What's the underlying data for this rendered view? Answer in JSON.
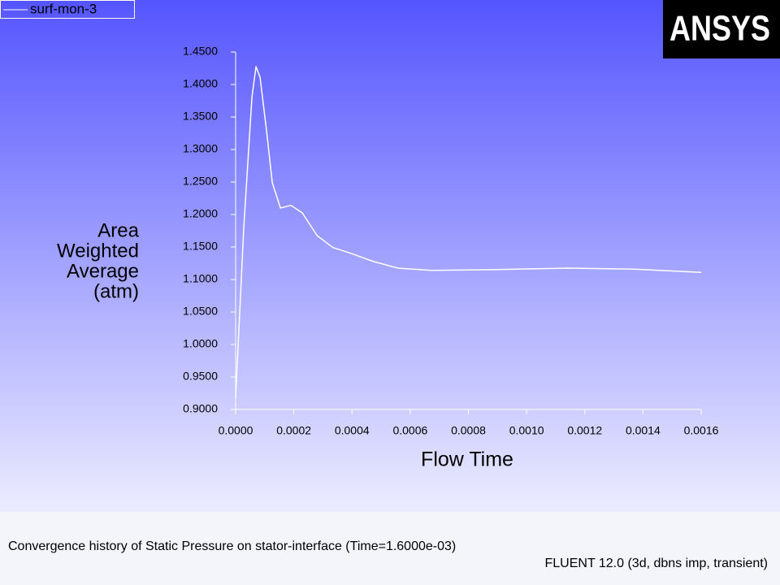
{
  "chart_data": {
    "type": "line",
    "title": "Convergence history of Static Pressure on stator-interface  (Time=1.6000e-03)",
    "subtitle": "FLUENT 12.0 (3d, dbns imp, transient)",
    "logo": "ANSYS",
    "xlabel": "Flow Time",
    "ylabel": [
      "Area",
      "Weighted",
      "Average",
      "(atm)"
    ],
    "x": [
      0,
      2.8e-05,
      5.6e-05,
      7e-05,
      8.4e-05,
      0.000106,
      0.000126,
      0.000154,
      0.00019,
      0.000229,
      0.00028,
      0.000335,
      0.000391,
      0.000475,
      0.000558,
      0.00067,
      0.000866,
      0.001145,
      0.001369,
      0.0016
    ],
    "series": [
      {
        "name": "surf-mon-3",
        "color": "#ffffff",
        "values": [
          0.9175,
          1.18,
          1.38,
          1.4275,
          1.411,
          1.33,
          1.249,
          1.21,
          1.214,
          1.2025,
          1.1675,
          1.149,
          1.141,
          1.1275,
          1.1175,
          1.114,
          1.115,
          1.1175,
          1.116,
          1.111
        ]
      }
    ],
    "xlim": [
      0,
      0.0016
    ],
    "ylim": [
      0.9,
      1.45
    ],
    "xticks": [
      {
        "value": 0,
        "label": "0.0000"
      },
      {
        "value": 0.0002,
        "label": "0.0002"
      },
      {
        "value": 0.0004,
        "label": "0.0004"
      },
      {
        "value": 0.0006,
        "label": "0.0006"
      },
      {
        "value": 0.0008,
        "label": "0.0008"
      },
      {
        "value": 0.001,
        "label": "0.0010"
      },
      {
        "value": 0.0012,
        "label": "0.0012"
      },
      {
        "value": 0.0014,
        "label": "0.0014"
      },
      {
        "value": 0.0016,
        "label": "0.0016"
      }
    ],
    "yticks": [
      {
        "value": 0.9,
        "label": "0.9000"
      },
      {
        "value": 0.95,
        "label": "0.9500"
      },
      {
        "value": 1.0,
        "label": "1.0000"
      },
      {
        "value": 1.05,
        "label": "1.0500"
      },
      {
        "value": 1.1,
        "label": "1.1000"
      },
      {
        "value": 1.15,
        "label": "1.1500"
      },
      {
        "value": 1.2,
        "label": "1.2000"
      },
      {
        "value": 1.25,
        "label": "1.2500"
      },
      {
        "value": 1.3,
        "label": "1.3000"
      },
      {
        "value": 1.35,
        "label": "1.3500"
      },
      {
        "value": 1.4,
        "label": "1.4000"
      },
      {
        "value": 1.45,
        "label": "1.4500"
      }
    ],
    "grid": false
  }
}
